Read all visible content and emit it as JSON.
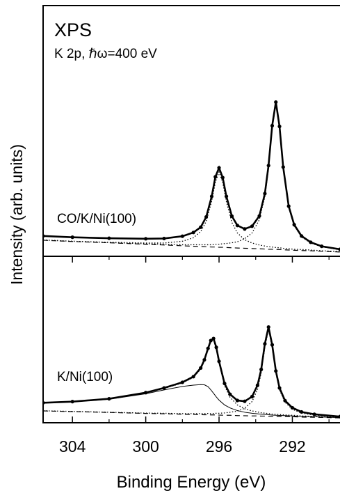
{
  "chart_data": [
    {
      "type": "line",
      "title": "XPS",
      "subtitle": "K 2p,  ℏω=400 eV",
      "annotation": "CO/K/Ni(100)",
      "ylabel": "Intensity (arb. units)",
      "xlim": [
        305.6,
        289.4
      ],
      "ylim": [
        0,
        100
      ],
      "x": [
        305.6,
        304,
        302,
        300,
        299,
        298,
        297.4,
        297,
        296.7,
        296.4,
        296.2,
        296.0,
        295.8,
        295.6,
        295.3,
        295.0,
        294.6,
        294.2,
        293.8,
        293.5,
        293.3,
        293.1,
        292.9,
        292.7,
        292.5,
        292.2,
        291.9,
        291.5,
        291.0,
        290.4,
        289.4
      ],
      "series": [
        {
          "color": "#000000",
          "style": "markers",
          "values": [
            8.1,
            7.6,
            7.2,
            7.0,
            7.1,
            8.0,
            9.5,
            11.6,
            15.7,
            23.9,
            31.7,
            35.3,
            31.4,
            23.9,
            16.0,
            12.3,
            10.9,
            12.0,
            16.1,
            25.0,
            36.2,
            52.1,
            61.5,
            51.8,
            35.6,
            20.0,
            12.6,
            8.1,
            5.6,
            4.0,
            2.8
          ]
        },
        {
          "color": "#000000",
          "style": "dotted",
          "values": [
            6.5,
            6.0,
            5.6,
            5.3,
            5.3,
            6.0,
            7.4,
            9.9,
            13.9,
            22.0,
            29.6,
            33.6,
            29.5,
            21.8,
            13.5,
            9.3,
            6.6,
            5.3,
            4.5,
            4.1,
            3.8,
            3.7,
            3.5,
            3.4,
            3.2,
            3.0,
            2.8,
            2.7,
            2.5,
            2.2,
            1.9
          ]
        },
        {
          "color": "#000000",
          "style": "dotted",
          "values": [
            6.5,
            6.0,
            5.5,
            5.0,
            4.8,
            4.6,
            4.6,
            4.6,
            4.6,
            4.6,
            4.8,
            4.8,
            5.0,
            5.1,
            5.4,
            5.8,
            7.0,
            9.3,
            14.6,
            23.8,
            35.2,
            51.2,
            60.7,
            51.1,
            35.0,
            19.5,
            12.2,
            7.7,
            5.3,
            3.8,
            2.6
          ]
        },
        {
          "color": "#000000",
          "style": "dashed",
          "values": [
            6.4,
            5.9,
            5.4,
            4.8,
            4.5,
            4.2,
            4.0,
            3.9,
            3.8,
            3.7,
            3.7,
            3.6,
            3.6,
            3.5,
            3.4,
            3.3,
            3.2,
            3.1,
            3.0,
            2.9,
            2.8,
            2.8,
            2.7,
            2.7,
            2.6,
            2.5,
            2.4,
            2.3,
            2.2,
            2.0,
            1.7
          ]
        }
      ]
    },
    {
      "type": "line",
      "annotation": "K/Ni(100)",
      "xlabel": "Binding Energy (eV)",
      "xlim": [
        305.6,
        289.4
      ],
      "ylim": [
        0,
        100
      ],
      "xticks": [
        304,
        300,
        296,
        292
      ],
      "xminorticks": [
        302,
        298,
        294,
        290
      ],
      "x": [
        305.6,
        304,
        302,
        300,
        299,
        298,
        297.4,
        297,
        296.8,
        296.6,
        296.45,
        296.3,
        296.15,
        296.0,
        295.7,
        295.4,
        295.0,
        294.6,
        294.2,
        293.9,
        293.7,
        293.5,
        293.3,
        293.1,
        292.9,
        292.7,
        292.4,
        292.0,
        291.5,
        290.8,
        289.4
      ],
      "series": [
        {
          "color": "#000000",
          "style": "markers",
          "values": [
            12.0,
            12.7,
            14.4,
            18.1,
            20.9,
            24.3,
            27.7,
            32.9,
            37.8,
            44.7,
            49.4,
            50.6,
            45.3,
            36.9,
            23.6,
            17.1,
            13.4,
            12.9,
            15.7,
            22.5,
            32.0,
            47.4,
            57.5,
            46.8,
            31.1,
            20.9,
            13.3,
            9.0,
            6.5,
            5.1,
            3.7
          ]
        },
        {
          "color": "#000000",
          "style": "solid",
          "values": [
            11.8,
            12.5,
            14.1,
            17.4,
            19.7,
            21.8,
            22.6,
            22.9,
            22.8,
            21.7,
            19.8,
            17.7,
            15.5,
            13.6,
            10.7,
            8.9,
            7.3,
            6.3,
            5.7,
            5.4,
            5.1,
            5.0,
            4.8,
            4.6,
            4.5,
            4.4,
            4.3,
            4.1,
            3.8,
            3.6,
            3.1
          ]
        },
        {
          "color": "#000000",
          "style": "dotted",
          "values": [
            11.9,
            12.6,
            14.3,
            17.9,
            20.6,
            23.9,
            27.2,
            32.3,
            37.1,
            43.9,
            48.6,
            49.7,
            44.3,
            35.8,
            22.2,
            15.3,
            10.7,
            8.4,
            7.1,
            6.5,
            6.0,
            5.8,
            5.5,
            5.2,
            5.1,
            4.9,
            4.7,
            4.5,
            4.1,
            3.8,
            3.2
          ]
        },
        {
          "color": "#000000",
          "style": "dotted",
          "values": [
            7.2,
            6.8,
            6.3,
            5.8,
            5.7,
            5.5,
            5.5,
            5.5,
            5.5,
            5.6,
            5.5,
            5.6,
            5.7,
            5.7,
            5.9,
            6.3,
            7.0,
            8.7,
            12.7,
            20.1,
            30.0,
            45.6,
            55.9,
            45.4,
            29.8,
            19.7,
            12.3,
            8.1,
            5.8,
            4.6,
            3.4
          ]
        },
        {
          "color": "#000000",
          "style": "dashed",
          "values": [
            7.1,
            6.7,
            6.2,
            5.6,
            5.4,
            5.1,
            5.0,
            4.9,
            4.8,
            4.8,
            4.7,
            4.7,
            4.7,
            4.6,
            4.5,
            4.5,
            4.3,
            4.2,
            4.1,
            4.1,
            4.0,
            4.0,
            3.9,
            3.8,
            3.8,
            3.7,
            3.7,
            3.6,
            3.4,
            3.3,
            2.9
          ]
        }
      ]
    }
  ]
}
